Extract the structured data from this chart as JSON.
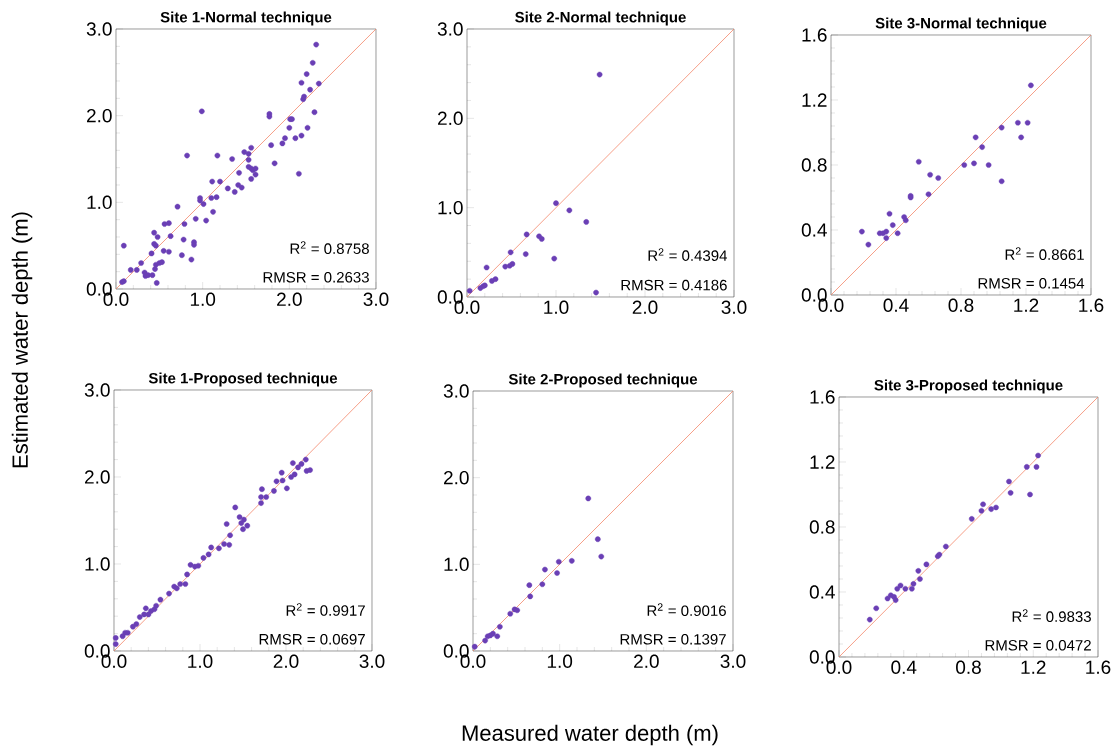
{
  "chart_data": [
    {
      "type": "scatter",
      "title": "Site 1-Normal technique",
      "ylabel": "Estimated water depth (m)",
      "xlim": [
        0,
        3
      ],
      "ylim": [
        0,
        3
      ],
      "xticks": [
        {
          "value": 0,
          "label": "0.0"
        },
        {
          "value": 1,
          "label": "1.0"
        },
        {
          "value": 2,
          "label": "2.0"
        },
        {
          "value": 3,
          "label": "3.0"
        }
      ],
      "yticks": [
        {
          "value": 0,
          "label": "0.0"
        },
        {
          "value": 1,
          "label": "1.0"
        },
        {
          "value": 2,
          "label": "2.0"
        },
        {
          "value": 3,
          "label": "3.0"
        }
      ],
      "annotations": [
        "R$^{2}$ = 0.8758",
        "RMSR = 0.2633"
      ],
      "series": [
        {
          "color": "#6a3fb5",
          "marker": "circle",
          "x": [
            0.07,
            0.09,
            0.09,
            0.17,
            0.24,
            0.29,
            0.33,
            0.34,
            0.37,
            0.42,
            0.41,
            0.44,
            0.48,
            0.44,
            0.46,
            0.45,
            0.46,
            0.5,
            0.53,
            0.47,
            0.55,
            0.61,
            0.56,
            0.61,
            0.63,
            0.71,
            0.76,
            0.78,
            0.79,
            0.82,
            0.87,
            0.9,
            0.9,
            0.92,
            0.97,
            0.97,
            1.01,
            0.99,
            1.04,
            1.1,
            1.11,
            1.12,
            1.16,
            1.17,
            1.2,
            1.29,
            1.34,
            1.37,
            1.41,
            1.42,
            1.45,
            1.48,
            1.53,
            1.56,
            1.53,
            1.53,
            1.56,
            1.58,
            1.61,
            1.56,
            1.61,
            1.77,
            1.77,
            1.79,
            1.83,
            1.92,
            1.95,
            2.0,
            2.01,
            2.03,
            2.07,
            2.11,
            2.14,
            2.21,
            2.14,
            2.16,
            2.17,
            2.2,
            2.24,
            2.27,
            2.29,
            2.31,
            2.34
          ],
          "values": [
            0.08,
            0.09,
            0.5,
            0.22,
            0.22,
            0.3,
            0.19,
            0.15,
            0.16,
            0.16,
            0.41,
            0.65,
            0.6,
            0.52,
            0.5,
            0.23,
            0.28,
            0.3,
            0.31,
            0.07,
            0.44,
            0.43,
            0.75,
            0.76,
            0.61,
            0.95,
            0.39,
            0.57,
            0.75,
            1.54,
            0.34,
            0.54,
            0.51,
            0.81,
            1.05,
            1.02,
            0.98,
            2.05,
            0.79,
            1.05,
            1.24,
            0.89,
            1.06,
            1.54,
            1.24,
            1.16,
            1.5,
            1.12,
            1.2,
            1.34,
            1.17,
            1.58,
            1.56,
            1.63,
            1.49,
            1.41,
            1.39,
            1.37,
            1.39,
            1.27,
            1.32,
            2.02,
            1.99,
            1.66,
            1.45,
            1.68,
            1.74,
            1.86,
            1.96,
            1.96,
            1.74,
            1.33,
            1.77,
            1.86,
            2.38,
            2.19,
            2.22,
            2.48,
            2.3,
            2.61,
            2.04,
            2.82,
            2.37
          ]
        },
        {
          "type": "line",
          "color": "#f4876a",
          "x": [
            0,
            3
          ],
          "values": [
            0,
            3
          ]
        }
      ]
    },
    {
      "type": "scatter",
      "title": "Site 2-Normal technique",
      "xlim": [
        0,
        3
      ],
      "ylim": [
        0,
        3
      ],
      "xticks": [
        {
          "value": 0,
          "label": "0.0"
        },
        {
          "value": 1,
          "label": "1.0"
        },
        {
          "value": 2,
          "label": "2.0"
        },
        {
          "value": 3,
          "label": "3.0"
        }
      ],
      "yticks": [
        {
          "value": 0,
          "label": "0.0"
        },
        {
          "value": 1,
          "label": "1.0"
        },
        {
          "value": 2,
          "label": "2.0"
        },
        {
          "value": 3,
          "label": "3.0"
        }
      ],
      "annotations": [
        "R$^{2}$ = 0.4394",
        "RMSR = 0.4186"
      ],
      "series": [
        {
          "color": "#6a3fb5",
          "marker": "circle",
          "x": [
            0.03,
            0.15,
            0.18,
            0.2,
            0.22,
            0.28,
            0.32,
            0.43,
            0.48,
            0.51,
            0.49,
            0.66,
            0.67,
            0.81,
            0.84,
            0.98,
            1.0,
            1.15,
            1.34,
            1.45,
            1.49
          ],
          "values": [
            0.07,
            0.1,
            0.12,
            0.13,
            0.33,
            0.18,
            0.2,
            0.34,
            0.35,
            0.37,
            0.5,
            0.48,
            0.7,
            0.68,
            0.65,
            0.43,
            1.05,
            0.97,
            0.84,
            0.05,
            2.49
          ]
        },
        {
          "type": "line",
          "color": "#f4876a",
          "x": [
            0,
            3
          ],
          "values": [
            0,
            3
          ]
        }
      ]
    },
    {
      "type": "scatter",
      "title": "Site 3-Normal technique",
      "xlim": [
        0,
        1.6
      ],
      "ylim": [
        0,
        1.6
      ],
      "xticks": [
        {
          "value": 0,
          "label": "0.0"
        },
        0.4,
        0.8,
        1.2,
        1.6
      ],
      "yticks": [
        {
          "value": 0,
          "label": "0.0"
        },
        0.4,
        0.8,
        1.2,
        1.6
      ],
      "annotations": [
        "R$^{2}$ = 0.8661",
        "RMSR = 0.1454"
      ],
      "series": [
        {
          "color": "#6a3fb5",
          "marker": "circle",
          "x": [
            0.19,
            0.23,
            0.3,
            0.32,
            0.34,
            0.34,
            0.36,
            0.38,
            0.41,
            0.45,
            0.46,
            0.49,
            0.49,
            0.54,
            0.6,
            0.61,
            0.66,
            0.82,
            0.88,
            0.89,
            0.93,
            0.97,
            1.05,
            1.05,
            1.15,
            1.17,
            1.21,
            1.23
          ],
          "values": [
            0.39,
            0.31,
            0.38,
            0.38,
            0.39,
            0.35,
            0.5,
            0.43,
            0.38,
            0.48,
            0.46,
            0.6,
            0.61,
            0.82,
            0.62,
            0.74,
            0.72,
            0.8,
            0.81,
            0.97,
            0.91,
            0.8,
            1.03,
            0.7,
            1.06,
            0.97,
            1.06,
            1.29
          ]
        },
        {
          "type": "line",
          "color": "#f4876a",
          "x": [
            0,
            1.6
          ],
          "values": [
            0,
            1.6
          ]
        }
      ]
    },
    {
      "type": "scatter",
      "title": "Site 1-Proposed technique",
      "xlim": [
        0,
        3
      ],
      "ylim": [
        0,
        3
      ],
      "xticks": [
        {
          "value": 0,
          "label": "0.0"
        },
        {
          "value": 1,
          "label": "1.0"
        },
        {
          "value": 2,
          "label": "2.0"
        },
        {
          "value": 3,
          "label": "3.0"
        }
      ],
      "yticks": [
        {
          "value": 0,
          "label": "0.0"
        },
        {
          "value": 1,
          "label": "1.0"
        },
        {
          "value": 2,
          "label": "2.0"
        },
        {
          "value": 3,
          "label": "3.0"
        }
      ],
      "annotations": [
        "R$^{2}$ = 0.9917",
        "RMSR = 0.0697"
      ],
      "series": [
        {
          "color": "#6a3fb5",
          "marker": "circle",
          "x": [
            0.02,
            0.02,
            0.1,
            0.13,
            0.16,
            0.22,
            0.26,
            0.3,
            0.35,
            0.37,
            0.4,
            0.43,
            0.47,
            0.49,
            0.54,
            0.64,
            0.7,
            0.73,
            0.77,
            0.83,
            0.85,
            0.89,
            0.94,
            0.98,
            1.04,
            1.1,
            1.13,
            1.22,
            1.28,
            1.34,
            1.35,
            1.31,
            1.41,
            1.46,
            1.48,
            1.51,
            1.55,
            1.5,
            1.71,
            1.72,
            1.71,
            1.77,
            1.86,
            1.95,
            1.96,
            2.01,
            2.06,
            2.1,
            2.08,
            2.14,
            2.18,
            2.23,
            2.24,
            2.28,
            1.89
          ],
          "values": [
            0.08,
            0.15,
            0.17,
            0.21,
            0.21,
            0.28,
            0.31,
            0.39,
            0.42,
            0.49,
            0.42,
            0.46,
            0.48,
            0.52,
            0.59,
            0.66,
            0.74,
            0.72,
            0.77,
            0.77,
            0.88,
            0.99,
            0.97,
            0.98,
            1.07,
            1.11,
            1.19,
            1.18,
            1.23,
            1.22,
            1.33,
            1.46,
            1.65,
            1.54,
            1.47,
            1.51,
            1.44,
            1.4,
            1.7,
            1.86,
            1.77,
            1.77,
            1.84,
            2.05,
            1.96,
            1.87,
            2.0,
            2.03,
            2.16,
            2.11,
            2.15,
            2.2,
            2.07,
            2.08,
            1.95
          ]
        },
        {
          "type": "line",
          "color": "#f4876a",
          "x": [
            0,
            3
          ],
          "values": [
            0,
            3
          ]
        }
      ]
    },
    {
      "type": "scatter",
      "title": "Site 2-Proposed technique",
      "xlabel": "Measured water depth (m)",
      "xlim": [
        0,
        3
      ],
      "ylim": [
        0,
        3
      ],
      "xticks": [
        {
          "value": 0,
          "label": "0.0"
        },
        {
          "value": 1,
          "label": "1.0"
        },
        {
          "value": 2,
          "label": "2.0"
        },
        {
          "value": 3,
          "label": "3.0"
        }
      ],
      "yticks": [
        {
          "value": 0,
          "label": "0.0"
        },
        {
          "value": 1,
          "label": "1.0"
        },
        {
          "value": 2,
          "label": "2.0"
        },
        {
          "value": 3,
          "label": "3.0"
        }
      ],
      "annotations": [
        "R$^{2}$ = 0.9016",
        "RMSR = 0.1397"
      ],
      "series": [
        {
          "color": "#6a3fb5",
          "marker": "circle",
          "x": [
            0.02,
            0.14,
            0.17,
            0.2,
            0.23,
            0.28,
            0.31,
            0.43,
            0.48,
            0.51,
            0.65,
            0.66,
            0.8,
            0.83,
            0.97,
            0.99,
            1.14,
            1.33,
            1.44,
            1.48
          ],
          "values": [
            0.05,
            0.12,
            0.17,
            0.18,
            0.2,
            0.17,
            0.28,
            0.43,
            0.48,
            0.47,
            0.76,
            0.63,
            0.77,
            0.94,
            0.9,
            1.03,
            1.04,
            1.76,
            1.29,
            1.09
          ]
        },
        {
          "type": "line",
          "color": "#f4876a",
          "x": [
            0,
            3
          ],
          "values": [
            0,
            3
          ]
        }
      ]
    },
    {
      "type": "scatter",
      "title": "Site 3-Proposed technique",
      "xlim": [
        0,
        1.6
      ],
      "ylim": [
        0,
        1.6
      ],
      "xticks": [
        {
          "value": 0,
          "label": "0.0"
        },
        0.4,
        0.8,
        1.2,
        1.6
      ],
      "yticks": [
        {
          "value": 0,
          "label": "0.0"
        },
        0.4,
        0.8,
        1.2,
        1.6
      ],
      "annotations": [
        "R$^{2}$ = 0.9833",
        "RMSR = 0.0472"
      ],
      "series": [
        {
          "color": "#6a3fb5",
          "marker": "circle",
          "x": [
            0.19,
            0.23,
            0.3,
            0.32,
            0.34,
            0.35,
            0.36,
            0.38,
            0.41,
            0.45,
            0.46,
            0.49,
            0.5,
            0.54,
            0.61,
            0.62,
            0.66,
            0.82,
            0.88,
            0.89,
            0.94,
            0.97,
            1.05,
            1.06,
            1.16,
            1.18,
            1.22,
            1.23
          ],
          "values": [
            0.23,
            0.3,
            0.36,
            0.38,
            0.37,
            0.35,
            0.42,
            0.44,
            0.42,
            0.42,
            0.45,
            0.53,
            0.48,
            0.57,
            0.62,
            0.63,
            0.68,
            0.85,
            0.9,
            0.94,
            0.91,
            0.92,
            1.08,
            1.01,
            1.17,
            1.0,
            1.17,
            1.24
          ]
        },
        {
          "type": "line",
          "color": "#f4876a",
          "x": [
            0,
            1.6
          ],
          "values": [
            0,
            1.6
          ]
        }
      ]
    }
  ]
}
